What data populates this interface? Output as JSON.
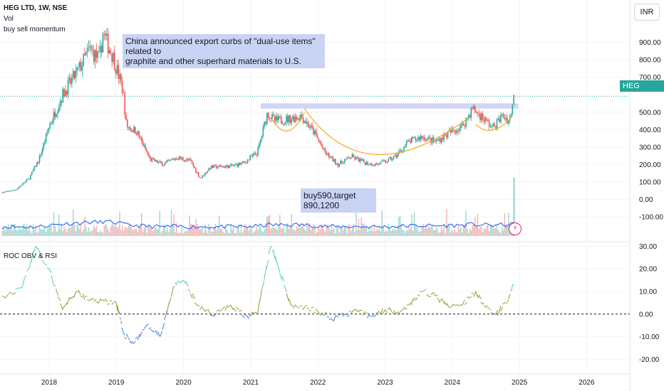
{
  "header": {
    "symbol_line": "HEG LTD, 1W, NSE",
    "indicator_1": "Vol",
    "indicator_2": "buy sell momentum",
    "indicator_3": "ROC OBV & RSI",
    "currency": "INR"
  },
  "annotations": {
    "china_note_line1": "China announced export curbs of \"dual-use items\" related to",
    "china_note_line2": "graphite and other superhard materials to U.S.",
    "target_note_line1": "buy590,target",
    "target_note_line2": "890,1200"
  },
  "price_tag": {
    "symbol": "HEG",
    "value": "591.25"
  },
  "colors": {
    "up": "#26a69a",
    "down": "#ef5350",
    "volume_ma": "#2962ff",
    "resistance": "#c9d3f3",
    "cup_curve": "#f5a623",
    "current_price": "#26a69a"
  },
  "chart_data": [
    {
      "type": "candlestick",
      "title": "HEG LTD, 1W, NSE",
      "x_ticks": [
        "2018",
        "2019",
        "2020",
        "2021",
        "2022",
        "2023",
        "2024",
        "2025",
        "2026"
      ],
      "y_ticks": [
        "900.00",
        "800.00",
        "700.00",
        "500.00",
        "400.00",
        "300.00",
        "200.00",
        "100.00",
        "0.00",
        "-100.00"
      ],
      "current_price": 591.25,
      "resistance_level": [
        520,
        550
      ],
      "path": [
        [
          2017.3,
          40
        ],
        [
          2017.5,
          55
        ],
        [
          2017.7,
          120
        ],
        [
          2017.85,
          230
        ],
        [
          2018.0,
          420
        ],
        [
          2018.2,
          600
        ],
        [
          2018.45,
          750
        ],
        [
          2018.6,
          860
        ],
        [
          2018.75,
          800
        ],
        [
          2018.8,
          950
        ],
        [
          2018.95,
          820
        ],
        [
          2019.1,
          620
        ],
        [
          2019.15,
          420
        ],
        [
          2019.3,
          390
        ],
        [
          2019.5,
          230
        ],
        [
          2019.7,
          200
        ],
        [
          2019.9,
          240
        ],
        [
          2020.1,
          220
        ],
        [
          2020.25,
          120
        ],
        [
          2020.4,
          185
        ],
        [
          2020.7,
          190
        ],
        [
          2020.9,
          210
        ],
        [
          2021.1,
          270
        ],
        [
          2021.25,
          500
        ],
        [
          2021.35,
          450
        ],
        [
          2021.55,
          460
        ],
        [
          2021.75,
          480
        ],
        [
          2021.95,
          380
        ],
        [
          2022.1,
          270
        ],
        [
          2022.3,
          200
        ],
        [
          2022.5,
          245
        ],
        [
          2022.7,
          210
        ],
        [
          2022.85,
          200
        ],
        [
          2023.0,
          215
        ],
        [
          2023.15,
          245
        ],
        [
          2023.35,
          330
        ],
        [
          2023.55,
          360
        ],
        [
          2023.75,
          330
        ],
        [
          2023.95,
          380
        ],
        [
          2024.15,
          420
        ],
        [
          2024.3,
          520
        ],
        [
          2024.45,
          470
        ],
        [
          2024.6,
          410
        ],
        [
          2024.75,
          480
        ],
        [
          2024.85,
          450
        ],
        [
          2024.92,
          591
        ]
      ],
      "volume_ma_y": [
        -100,
        -60
      ]
    },
    {
      "type": "line",
      "title": "ROC OBV & RSI",
      "y_ticks": [
        "30.00",
        "20.00",
        "10.00",
        "0.00",
        "-10.00",
        "-20.00"
      ],
      "ylim": [
        -24,
        32
      ],
      "baseline": 0,
      "x": [
        2017.3,
        2017.6,
        2017.8,
        2018.0,
        2018.2,
        2018.4,
        2018.6,
        2018.8,
        2019.0,
        2019.1,
        2019.25,
        2019.45,
        2019.65,
        2019.85,
        2020.0,
        2020.2,
        2020.45,
        2020.7,
        2020.95,
        2021.1,
        2021.3,
        2021.4,
        2021.6,
        2021.8,
        2022.0,
        2022.2,
        2022.4,
        2022.6,
        2022.8,
        2023.0,
        2023.2,
        2023.35,
        2023.55,
        2023.75,
        2023.95,
        2024.15,
        2024.35,
        2024.5,
        2024.65,
        2024.8,
        2024.92
      ],
      "values": [
        8,
        12,
        30,
        20,
        2,
        10,
        6,
        6,
        5,
        -8,
        -13,
        -5,
        -10,
        12,
        15,
        4,
        -1,
        4,
        -1,
        0,
        30,
        22,
        4,
        3,
        1,
        -2,
        0,
        1,
        -1,
        2,
        1,
        4,
        10,
        8,
        3,
        4,
        10,
        3,
        0,
        5,
        13
      ]
    }
  ]
}
